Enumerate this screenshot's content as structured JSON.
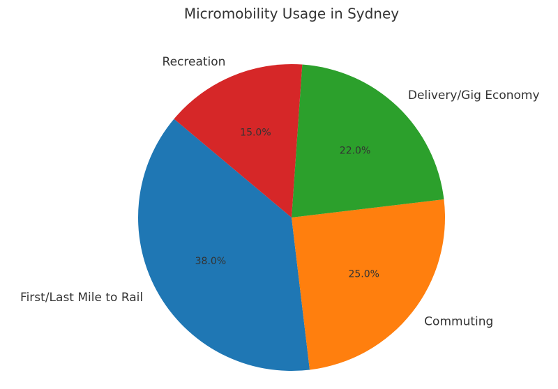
{
  "chart_data": {
    "type": "pie",
    "title": "Micromobility Usage in Sydney",
    "categories": [
      "First/Last Mile to Rail",
      "Commuting",
      "Delivery/Gig Economy",
      "Recreation"
    ],
    "values": [
      38,
      25,
      22,
      15
    ],
    "value_labels": [
      "38.0%",
      "25.0%",
      "22.0%",
      "15.0%"
    ],
    "colors": [
      "#1f77b4",
      "#ff7f0e",
      "#2ca02c",
      "#d62728"
    ],
    "start_angle": 140
  }
}
